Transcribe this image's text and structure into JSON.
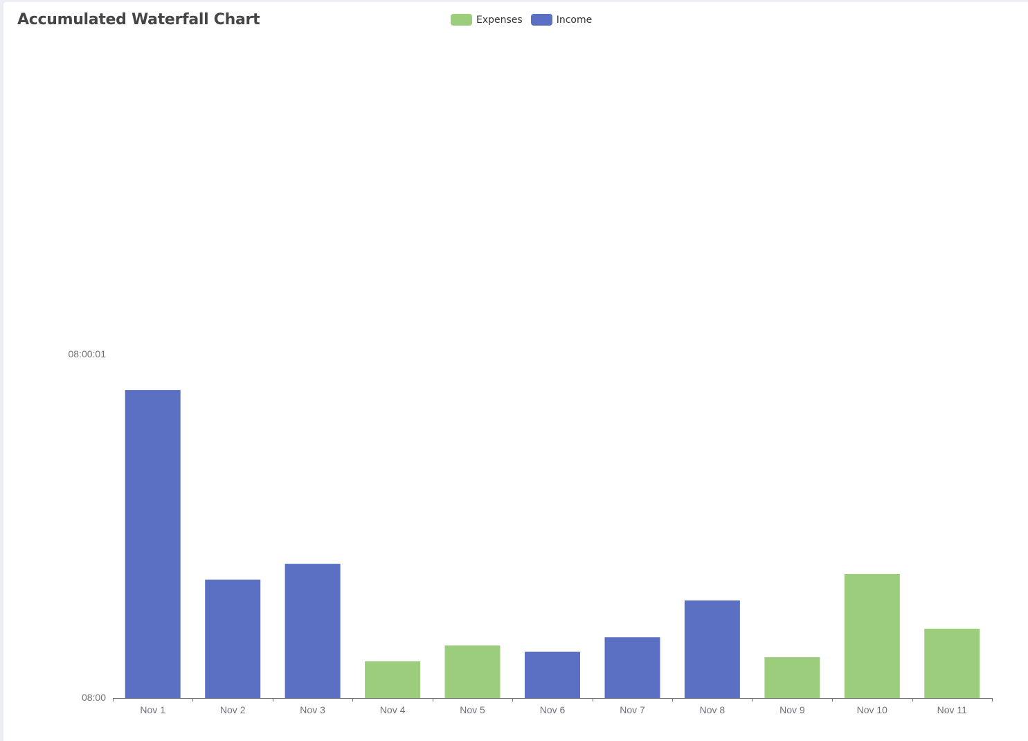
{
  "title": "Accumulated Waterfall Chart",
  "legend": [
    {
      "label": "Expenses",
      "color": "#9bcd7c"
    },
    {
      "label": "Income",
      "color": "#5b70c2"
    }
  ],
  "y_axis": {
    "labels": [
      {
        "text": "08:00",
        "value": 0
      },
      {
        "text": "08:00:01",
        "value": 1000
      }
    ]
  },
  "colors": {
    "income": "#5b70c2",
    "expenses": "#9bcd7c",
    "axis": "#6e7079",
    "background": "#eceef4"
  },
  "chart_data": {
    "type": "bar",
    "title": "Accumulated Waterfall Chart",
    "xlabel": "",
    "ylabel": "",
    "categories": [
      "Nov 1",
      "Nov 2",
      "Nov 3",
      "Nov 4",
      "Nov 5",
      "Nov 6",
      "Nov 7",
      "Nov 8",
      "Nov 9",
      "Nov 10",
      "Nov 11"
    ],
    "series": [
      {
        "name": "Expenses",
        "color": "#9bcd7c",
        "values": [
          null,
          null,
          null,
          107,
          153,
          null,
          null,
          null,
          119,
          361,
          202
        ]
      },
      {
        "name": "Income",
        "color": "#5b70c2",
        "values": [
          897,
          345,
          391,
          null,
          null,
          135,
          177,
          284,
          null,
          null,
          null
        ]
      }
    ],
    "y_tick_labels": [
      "08:00",
      "08:00:01"
    ],
    "ylim": [
      0,
      1000
    ],
    "grid": false,
    "legend_position": "top-center"
  }
}
